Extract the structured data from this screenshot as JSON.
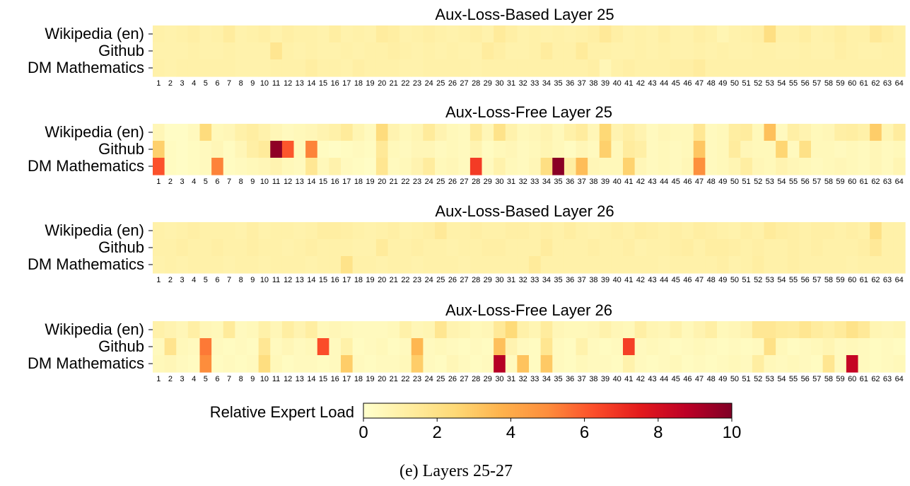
{
  "caption": "(e) Layers 25-27",
  "colorbar": {
    "label": "Relative Expert Load",
    "ticks": [
      "0",
      "2",
      "4",
      "6",
      "8",
      "10"
    ],
    "vmin": 0,
    "vmax": 10,
    "colormap": [
      "#ffffcc",
      "#ffeda0",
      "#fed976",
      "#feb24c",
      "#fd8d3c",
      "#fc4e2a",
      "#e31a1c",
      "#bd0026",
      "#800026"
    ]
  },
  "chart_data": [
    {
      "type": "heatmap",
      "title": "Aux-Loss-Based Layer 25",
      "rows": [
        "Wikipedia (en)",
        "Github",
        "DM Mathematics"
      ],
      "columns": [
        "1",
        "2",
        "3",
        "4",
        "5",
        "6",
        "7",
        "8",
        "9",
        "10",
        "11",
        "12",
        "13",
        "14",
        "15",
        "16",
        "17",
        "18",
        "19",
        "20",
        "21",
        "22",
        "23",
        "24",
        "25",
        "26",
        "27",
        "28",
        "29",
        "30",
        "31",
        "32",
        "33",
        "34",
        "35",
        "36",
        "37",
        "38",
        "39",
        "40",
        "41",
        "42",
        "43",
        "44",
        "45",
        "46",
        "47",
        "48",
        "49",
        "50",
        "51",
        "52",
        "53",
        "54",
        "55",
        "56",
        "57",
        "58",
        "59",
        "60",
        "61",
        "62",
        "63",
        "64"
      ],
      "values": [
        [
          1.0,
          0.9,
          1.0,
          1.1,
          0.9,
          1.0,
          1.3,
          0.9,
          1.0,
          1.1,
          0.9,
          1.1,
          1.0,
          1.0,
          0.9,
          1.2,
          0.9,
          1.0,
          0.9,
          1.3,
          1.2,
          0.9,
          1.0,
          1.1,
          1.0,
          0.9,
          1.0,
          1.1,
          0.9,
          1.4,
          1.1,
          0.9,
          1.0,
          0.9,
          1.0,
          0.9,
          1.0,
          1.1,
          1.5,
          1.1,
          0.9,
          1.0,
          0.9,
          1.1,
          0.9,
          0.9,
          1.1,
          1.0,
          0.7,
          0.9,
          1.0,
          1.1,
          2.1,
          1.0,
          1.0,
          1.2,
          0.9,
          1.0,
          1.2,
          1.0,
          1.0,
          1.5,
          1.2,
          1.0
        ],
        [
          0.9,
          0.9,
          0.9,
          1.0,
          0.9,
          0.9,
          1.0,
          0.9,
          0.9,
          0.9,
          1.7,
          1.0,
          0.9,
          1.0,
          0.9,
          0.9,
          1.0,
          0.9,
          1.0,
          1.0,
          1.1,
          1.0,
          0.9,
          1.0,
          0.9,
          1.0,
          0.9,
          0.9,
          1.3,
          1.1,
          0.9,
          0.9,
          1.0,
          1.3,
          1.0,
          1.0,
          1.4,
          1.0,
          1.0,
          0.9,
          0.9,
          1.0,
          0.9,
          1.0,
          0.9,
          0.9,
          1.0,
          0.9,
          1.0,
          0.9,
          0.9,
          1.0,
          1.0,
          0.9,
          0.9,
          1.0,
          0.9,
          0.9,
          1.1,
          1.0,
          0.9,
          0.9,
          1.0,
          1.0
        ],
        [
          1.0,
          0.9,
          1.0,
          1.0,
          1.0,
          1.0,
          1.0,
          0.9,
          0.9,
          0.9,
          1.0,
          1.0,
          1.0,
          1.2,
          1.0,
          1.0,
          0.9,
          1.1,
          1.0,
          1.0,
          1.0,
          0.9,
          0.9,
          1.0,
          1.0,
          1.0,
          1.0,
          0.9,
          1.0,
          1.0,
          1.0,
          1.0,
          1.0,
          1.0,
          1.0,
          1.0,
          1.0,
          1.1,
          0.6,
          1.0,
          1.1,
          1.0,
          1.0,
          1.0,
          1.1,
          1.1,
          1.3,
          1.0,
          1.0,
          1.0,
          1.0,
          1.0,
          1.0,
          1.0,
          1.0,
          1.0,
          1.0,
          1.0,
          1.0,
          1.0,
          1.0,
          1.0,
          1.0,
          1.0
        ]
      ]
    },
    {
      "type": "heatmap",
      "title": "Aux-Loss-Free Layer 25",
      "rows": [
        "Wikipedia (en)",
        "Github",
        "DM Mathematics"
      ],
      "columns": [
        "1",
        "2",
        "3",
        "4",
        "5",
        "6",
        "7",
        "8",
        "9",
        "10",
        "11",
        "12",
        "13",
        "14",
        "15",
        "16",
        "17",
        "18",
        "19",
        "20",
        "21",
        "22",
        "23",
        "24",
        "25",
        "26",
        "27",
        "28",
        "29",
        "30",
        "31",
        "32",
        "33",
        "34",
        "35",
        "36",
        "37",
        "38",
        "39",
        "40",
        "41",
        "42",
        "43",
        "44",
        "45",
        "46",
        "47",
        "48",
        "49",
        "50",
        "51",
        "52",
        "53",
        "54",
        "55",
        "56",
        "57",
        "58",
        "59",
        "60",
        "61",
        "62",
        "63",
        "64"
      ],
      "values": [
        [
          0.6,
          0.2,
          0.2,
          0.4,
          2.3,
          0.5,
          0.6,
          1.0,
          1.2,
          0.9,
          0.6,
          0.4,
          0.5,
          0.6,
          0.8,
          1.0,
          1.4,
          0.7,
          0.4,
          2.3,
          0.8,
          0.5,
          0.7,
          1.4,
          0.8,
          0.5,
          0.4,
          1.4,
          0.6,
          1.9,
          0.9,
          0.5,
          0.6,
          0.8,
          0.5,
          1.0,
          1.3,
          0.6,
          2.5,
          0.8,
          1.1,
          0.8,
          0.4,
          0.6,
          0.5,
          0.5,
          1.6,
          0.4,
          0.5,
          1.2,
          1.3,
          0.5,
          3.3,
          0.4,
          1.1,
          0.8,
          0.5,
          0.6,
          1.1,
          1.2,
          1.0,
          2.9,
          0.7,
          1.3
        ],
        [
          2.8,
          0.3,
          0.2,
          0.3,
          0.4,
          0.6,
          0.3,
          0.6,
          1.1,
          1.4,
          9.7,
          6.1,
          0.5,
          5.2,
          0.3,
          0.2,
          0.3,
          0.4,
          0.3,
          1.5,
          0.5,
          0.4,
          0.6,
          0.6,
          0.4,
          0.5,
          0.4,
          0.8,
          0.3,
          0.5,
          0.6,
          0.4,
          0.5,
          0.7,
          0.5,
          0.3,
          0.6,
          0.4,
          2.8,
          0.5,
          1.3,
          1.1,
          0.4,
          0.5,
          0.4,
          0.5,
          3.1,
          0.4,
          0.5,
          1.3,
          0.6,
          0.5,
          0.5,
          2.6,
          0.4,
          2.0,
          0.5,
          0.5,
          0.4,
          0.5,
          0.4,
          0.6,
          0.4,
          0.5
        ],
        [
          6.2,
          0.3,
          0.2,
          0.3,
          0.4,
          5.2,
          0.3,
          0.4,
          0.5,
          0.6,
          0.8,
          0.5,
          0.4,
          1.6,
          0.5,
          0.9,
          0.4,
          0.3,
          0.2,
          1.7,
          0.4,
          0.5,
          0.8,
          1.3,
          0.5,
          0.6,
          0.4,
          6.7,
          0.4,
          0.9,
          0.5,
          0.4,
          0.6,
          2.1,
          9.8,
          1.2,
          3.4,
          0.6,
          0.5,
          0.5,
          2.7,
          0.6,
          0.4,
          0.5,
          0.4,
          0.6,
          4.9,
          0.4,
          0.5,
          0.7,
          1.2,
          0.6,
          0.5,
          0.8,
          0.6,
          0.5,
          0.4,
          0.5,
          0.6,
          0.5,
          0.4,
          0.6,
          0.4,
          0.7
        ]
      ]
    },
    {
      "type": "heatmap",
      "title": "Aux-Loss-Based Layer 26",
      "rows": [
        "Wikipedia (en)",
        "Github",
        "DM Mathematics"
      ],
      "columns": [
        "1",
        "2",
        "3",
        "4",
        "5",
        "6",
        "7",
        "8",
        "9",
        "10",
        "11",
        "12",
        "13",
        "14",
        "15",
        "16",
        "17",
        "18",
        "19",
        "20",
        "21",
        "22",
        "23",
        "24",
        "25",
        "26",
        "27",
        "28",
        "29",
        "30",
        "31",
        "32",
        "33",
        "34",
        "35",
        "36",
        "37",
        "38",
        "39",
        "40",
        "41",
        "42",
        "43",
        "44",
        "45",
        "46",
        "47",
        "48",
        "49",
        "50",
        "51",
        "52",
        "53",
        "54",
        "55",
        "56",
        "57",
        "58",
        "59",
        "60",
        "61",
        "62",
        "63",
        "64"
      ],
      "values": [
        [
          1.0,
          0.9,
          1.0,
          1.1,
          1.0,
          1.0,
          1.0,
          0.9,
          1.1,
          0.9,
          1.0,
          1.0,
          0.9,
          1.0,
          1.2,
          1.2,
          1.1,
          1.0,
          0.9,
          1.0,
          1.1,
          0.9,
          1.0,
          1.1,
          1.5,
          1.0,
          1.0,
          1.1,
          1.0,
          1.0,
          1.1,
          1.1,
          1.0,
          1.1,
          1.0,
          1.2,
          1.0,
          0.9,
          1.0,
          1.1,
          1.0,
          1.2,
          1.1,
          1.0,
          1.1,
          1.0,
          1.2,
          1.1,
          1.0,
          0.9,
          1.1,
          1.0,
          1.4,
          1.2,
          1.1,
          1.0,
          1.1,
          1.1,
          1.0,
          1.1,
          1.0,
          2.0,
          1.0,
          1.0
        ],
        [
          1.0,
          1.0,
          1.1,
          1.0,
          1.0,
          1.1,
          1.0,
          1.0,
          1.1,
          1.0,
          1.0,
          0.9,
          1.0,
          1.1,
          1.0,
          1.0,
          1.0,
          0.9,
          0.9,
          1.4,
          1.0,
          1.0,
          1.1,
          1.0,
          1.0,
          0.9,
          1.0,
          1.0,
          1.1,
          1.1,
          1.0,
          1.0,
          1.0,
          1.3,
          1.0,
          1.0,
          1.0,
          1.1,
          1.0,
          1.0,
          1.1,
          0.9,
          1.0,
          1.0,
          1.1,
          1.2,
          1.0,
          1.2,
          1.2,
          1.1,
          1.0,
          1.1,
          1.0,
          1.0,
          1.1,
          1.0,
          1.1,
          1.0,
          1.0,
          1.0,
          1.1,
          1.5,
          1.0,
          1.0
        ],
        [
          0.9,
          1.0,
          0.9,
          1.0,
          1.0,
          1.0,
          0.9,
          1.0,
          1.0,
          0.9,
          1.0,
          1.0,
          1.0,
          0.9,
          1.0,
          1.0,
          1.9,
          1.0,
          1.0,
          0.9,
          1.0,
          1.0,
          0.9,
          1.0,
          1.0,
          1.0,
          0.9,
          1.0,
          1.0,
          1.0,
          1.0,
          1.0,
          1.4,
          1.0,
          1.0,
          1.0,
          1.0,
          1.0,
          1.0,
          1.0,
          1.0,
          1.0,
          1.0,
          0.9,
          1.0,
          1.0,
          1.0,
          1.0,
          1.1,
          0.9,
          1.0,
          1.2,
          1.0,
          1.0,
          1.1,
          1.0,
          1.0,
          1.0,
          1.0,
          0.9,
          1.0,
          1.0,
          1.0,
          1.0
        ]
      ]
    },
    {
      "type": "heatmap",
      "title": "Aux-Loss-Free Layer 26",
      "rows": [
        "Wikipedia (en)",
        "Github",
        "DM Mathematics"
      ],
      "columns": [
        "1",
        "2",
        "3",
        "4",
        "5",
        "6",
        "7",
        "8",
        "9",
        "10",
        "11",
        "12",
        "13",
        "14",
        "15",
        "16",
        "17",
        "18",
        "19",
        "20",
        "21",
        "22",
        "23",
        "24",
        "25",
        "26",
        "27",
        "28",
        "29",
        "30",
        "31",
        "32",
        "33",
        "34",
        "35",
        "36",
        "37",
        "38",
        "39",
        "40",
        "41",
        "42",
        "43",
        "44",
        "45",
        "46",
        "47",
        "48",
        "49",
        "50",
        "51",
        "52",
        "53",
        "54",
        "55",
        "56",
        "57",
        "58",
        "59",
        "60",
        "61",
        "62",
        "63",
        "64"
      ],
      "values": [
        [
          1.0,
          0.8,
          0.6,
          1.1,
          0.6,
          0.5,
          1.4,
          0.4,
          0.5,
          1.0,
          0.6,
          1.2,
          0.8,
          1.2,
          0.5,
          0.6,
          0.5,
          0.4,
          0.4,
          0.4,
          0.5,
          1.0,
          0.6,
          0.7,
          1.7,
          0.8,
          0.7,
          0.5,
          0.6,
          1.5,
          2.4,
          1.0,
          0.7,
          1.3,
          0.6,
          0.5,
          0.5,
          0.6,
          0.9,
          0.6,
          0.5,
          1.1,
          0.7,
          0.6,
          0.9,
          0.5,
          0.8,
          1.1,
          0.5,
          0.6,
          0.8,
          1.6,
          1.6,
          1.4,
          1.3,
          1.7,
          1.3,
          1.1,
          1.4,
          1.9,
          1.5,
          0.7,
          0.6,
          0.7
        ],
        [
          0.4,
          1.8,
          0.5,
          0.4,
          5.4,
          0.4,
          0.3,
          0.4,
          0.3,
          1.6,
          0.4,
          0.6,
          0.4,
          0.5,
          6.3,
          0.4,
          1.0,
          0.3,
          0.4,
          0.5,
          0.3,
          0.4,
          3.6,
          0.4,
          0.5,
          0.4,
          0.3,
          0.4,
          0.3,
          3.3,
          0.8,
          0.4,
          0.3,
          1.7,
          0.4,
          0.3,
          0.9,
          0.4,
          0.3,
          0.4,
          6.6,
          0.4,
          0.5,
          0.4,
          0.3,
          0.4,
          0.5,
          0.4,
          0.3,
          0.4,
          0.3,
          0.4,
          2.0,
          0.5,
          0.3,
          0.4,
          0.5,
          0.7,
          0.4,
          0.5,
          0.4,
          0.3,
          0.4,
          0.3
        ],
        [
          0.5,
          0.6,
          0.4,
          0.3,
          5.0,
          0.3,
          0.4,
          0.3,
          0.4,
          2.2,
          0.5,
          0.3,
          0.4,
          0.4,
          0.3,
          0.4,
          2.9,
          0.4,
          0.3,
          0.4,
          0.4,
          0.5,
          2.9,
          0.4,
          0.3,
          0.6,
          0.4,
          0.3,
          0.4,
          8.9,
          0.4,
          3.2,
          0.3,
          3.0,
          0.4,
          0.3,
          0.5,
          0.4,
          0.4,
          0.3,
          0.9,
          0.4,
          0.3,
          0.4,
          0.5,
          0.3,
          0.4,
          0.3,
          0.4,
          0.5,
          0.4,
          1.2,
          0.5,
          0.4,
          0.5,
          0.4,
          0.3,
          1.7,
          0.4,
          8.5,
          0.4,
          0.3,
          0.4,
          0.5
        ]
      ]
    }
  ]
}
